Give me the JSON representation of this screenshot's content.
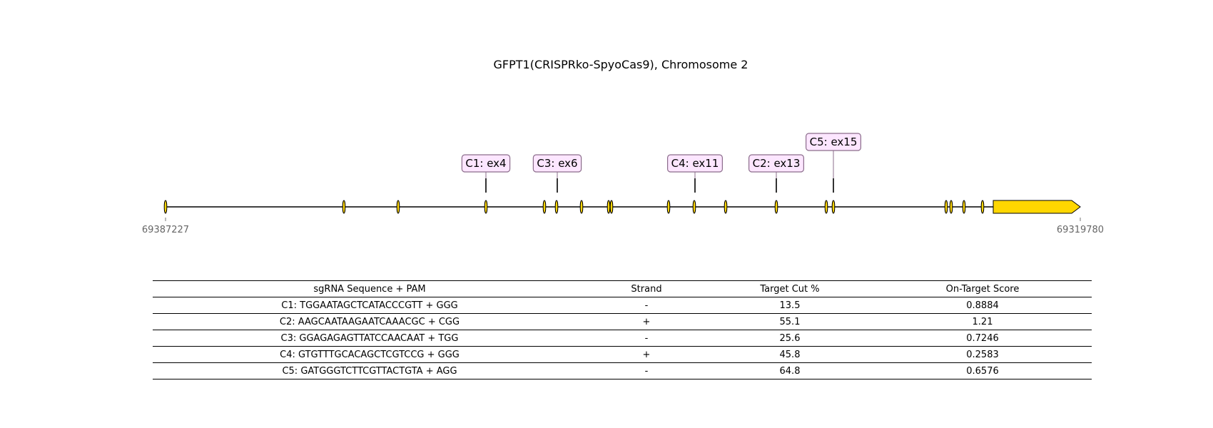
{
  "title": "GFPT1(CRISPRko-SpyoCas9), Chromosome 2",
  "gene": {
    "start_label": "69387227",
    "end_label": "69319780",
    "exon_color": "#FFD700",
    "label_box_fill": "#FCE6FF",
    "label_box_stroke": "#8B6C8B"
  },
  "guides": [
    {
      "label": "C1: ex4"
    },
    {
      "label": "C3: ex6"
    },
    {
      "label": "C4: ex11"
    },
    {
      "label": "C2: ex13"
    },
    {
      "label": "C5: ex15"
    }
  ],
  "table": {
    "headers": [
      "sgRNA Sequence + PAM",
      "Strand",
      "Target Cut %",
      "On-Target Score"
    ],
    "rows": [
      [
        "C1: TGGAATAGCTCATACCCGTT + GGG",
        "-",
        "13.5",
        "0.8884"
      ],
      [
        "C2: AAGCAATAAGAATCAAACGC + CGG",
        "+",
        "55.1",
        "1.21"
      ],
      [
        "C3: GGAGAGAGTTATCCAACAAT + TGG",
        "-",
        "25.6",
        "0.7246"
      ],
      [
        "C4: GTGTTTGCACAGCTCGTCCG + GGG",
        "+",
        "45.8",
        "0.2583"
      ],
      [
        "C5: GATGGGTCTTCGTTACTGTA + AGG",
        "-",
        "64.8",
        "0.6576"
      ]
    ]
  }
}
